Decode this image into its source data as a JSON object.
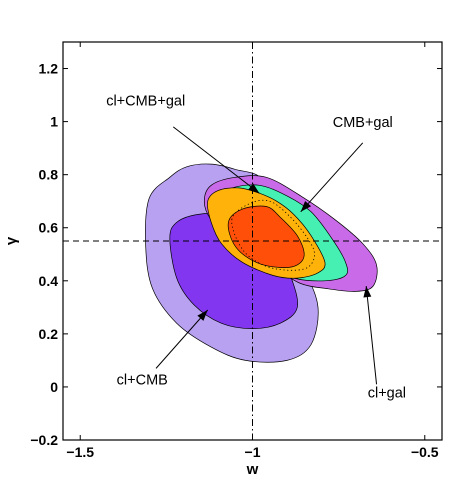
{
  "chart_data": {
    "type": "contour",
    "title": "",
    "xlabel": "w",
    "ylabel": "γ",
    "xlim": [
      -1.55,
      -0.45
    ],
    "ylim": [
      -0.2,
      1.3
    ],
    "xticks": [
      -1.5,
      -1,
      -0.5
    ],
    "xtick_labels": [
      "−1.5",
      "−1",
      "−0.5"
    ],
    "yticks": [
      -0.2,
      0,
      0.2,
      0.4,
      0.6,
      0.8,
      1,
      1.2
    ],
    "ytick_labels": [
      "−0.2",
      "0",
      "0.2",
      "0.4",
      "0.6",
      "0.8",
      "1",
      "1.2"
    ],
    "grid": false,
    "reference_lines": {
      "w": -1,
      "gamma": 0.55
    },
    "colors": {
      "cl_cmb_outer": "#b9a1f2",
      "cl_cmb_inner": "#8236f0",
      "cl_gal_outer": "#c96ae8",
      "cmb_gal_outer": "#46f0b2",
      "combined_outer": "#ffb20a",
      "combined_inner": "#ff4f08"
    },
    "contours": [
      {
        "name": "cl+CMB",
        "level": "outer",
        "points": [
          [
            -1.31,
            0.53
          ],
          [
            -1.3,
            0.71
          ],
          [
            -1.24,
            0.79
          ],
          [
            -1.19,
            0.83
          ],
          [
            -1.12,
            0.84
          ],
          [
            -1.05,
            0.82
          ],
          [
            -0.97,
            0.78
          ],
          [
            -0.93,
            0.62
          ],
          [
            -0.85,
            0.44
          ],
          [
            -0.81,
            0.3
          ],
          [
            -0.83,
            0.16
          ],
          [
            -0.9,
            0.1
          ],
          [
            -1.02,
            0.1
          ],
          [
            -1.12,
            0.15
          ],
          [
            -1.22,
            0.24
          ],
          [
            -1.29,
            0.37
          ]
        ]
      },
      {
        "name": "cl+CMB",
        "level": "inner",
        "points": [
          [
            -1.24,
            0.56
          ],
          [
            -1.22,
            0.62
          ],
          [
            -1.16,
            0.65
          ],
          [
            -1.08,
            0.65
          ],
          [
            -1.0,
            0.62
          ],
          [
            -0.94,
            0.55
          ],
          [
            -0.89,
            0.42
          ],
          [
            -0.87,
            0.3
          ],
          [
            -0.92,
            0.24
          ],
          [
            -1.0,
            0.22
          ],
          [
            -1.09,
            0.24
          ],
          [
            -1.17,
            0.31
          ],
          [
            -1.22,
            0.41
          ]
        ]
      },
      {
        "name": "cl+gal",
        "level": "outer",
        "points": [
          [
            -1.14,
            0.7
          ],
          [
            -1.12,
            0.76
          ],
          [
            -1.05,
            0.79
          ],
          [
            -0.96,
            0.79
          ],
          [
            -0.86,
            0.72
          ],
          [
            -0.76,
            0.63
          ],
          [
            -0.68,
            0.54
          ],
          [
            -0.64,
            0.46
          ],
          [
            -0.65,
            0.38
          ],
          [
            -0.7,
            0.36
          ],
          [
            -0.78,
            0.37
          ],
          [
            -0.86,
            0.39
          ],
          [
            -0.95,
            0.46
          ],
          [
            -1.05,
            0.54
          ],
          [
            -1.12,
            0.63
          ]
        ]
      },
      {
        "name": "CMB+gal",
        "level": "outer",
        "points": [
          [
            -1.12,
            0.71
          ],
          [
            -1.06,
            0.75
          ],
          [
            -0.98,
            0.76
          ],
          [
            -0.9,
            0.72
          ],
          [
            -0.83,
            0.66
          ],
          [
            -0.77,
            0.56
          ],
          [
            -0.73,
            0.47
          ],
          [
            -0.73,
            0.42
          ],
          [
            -0.79,
            0.4
          ],
          [
            -0.88,
            0.41
          ],
          [
            -0.97,
            0.46
          ],
          [
            -1.06,
            0.53
          ],
          [
            -1.11,
            0.62
          ]
        ]
      },
      {
        "name": "cl+CMB+gal",
        "level": "outer",
        "points": [
          [
            -1.13,
            0.7
          ],
          [
            -1.1,
            0.74
          ],
          [
            -1.04,
            0.75
          ],
          [
            -0.98,
            0.73
          ],
          [
            -0.93,
            0.7
          ],
          [
            -0.88,
            0.65
          ],
          [
            -0.83,
            0.57
          ],
          [
            -0.79,
            0.47
          ],
          [
            -0.81,
            0.43
          ],
          [
            -0.87,
            0.41
          ],
          [
            -0.94,
            0.42
          ],
          [
            -1.03,
            0.47
          ],
          [
            -1.09,
            0.54
          ],
          [
            -1.12,
            0.62
          ]
        ]
      },
      {
        "name": "cl+CMB+gal",
        "level": "inner",
        "points": [
          [
            -1.07,
            0.62
          ],
          [
            -1.03,
            0.67
          ],
          [
            -0.96,
            0.68
          ],
          [
            -0.92,
            0.64
          ],
          [
            -0.87,
            0.57
          ],
          [
            -0.85,
            0.5
          ],
          [
            -0.87,
            0.46
          ],
          [
            -0.92,
            0.45
          ],
          [
            -0.99,
            0.47
          ],
          [
            -1.05,
            0.53
          ]
        ]
      }
    ],
    "dotted_contour": {
      "points": [
        [
          -1.06,
          0.63
        ],
        [
          -1.01,
          0.69
        ],
        [
          -0.95,
          0.7
        ],
        [
          -0.89,
          0.64
        ],
        [
          -0.84,
          0.56
        ],
        [
          -0.82,
          0.5
        ],
        [
          -0.84,
          0.45
        ],
        [
          -0.9,
          0.44
        ],
        [
          -0.97,
          0.46
        ],
        [
          -1.03,
          0.52
        ]
      ]
    },
    "annotations": [
      {
        "text": "cl+CMB+gal",
        "text_at": [
          -1.31,
          1.06
        ],
        "arrow_from": [
          -1.23,
          0.98
        ],
        "arrow_to": [
          -0.98,
          0.73
        ]
      },
      {
        "text": "CMB+gal",
        "text_at": [
          -0.68,
          0.98
        ],
        "arrow_from": [
          -0.68,
          0.92
        ],
        "arrow_to": [
          -0.86,
          0.66
        ]
      },
      {
        "text": "cl+CMB",
        "text_at": [
          -1.32,
          0.01
        ],
        "arrow_from": [
          -1.28,
          0.07
        ],
        "arrow_to": [
          -1.13,
          0.29
        ]
      },
      {
        "text": "cl+gal",
        "text_at": [
          -0.61,
          -0.04
        ],
        "arrow_from": [
          -0.64,
          0.01
        ],
        "arrow_to": [
          -0.67,
          0.38
        ]
      }
    ]
  }
}
